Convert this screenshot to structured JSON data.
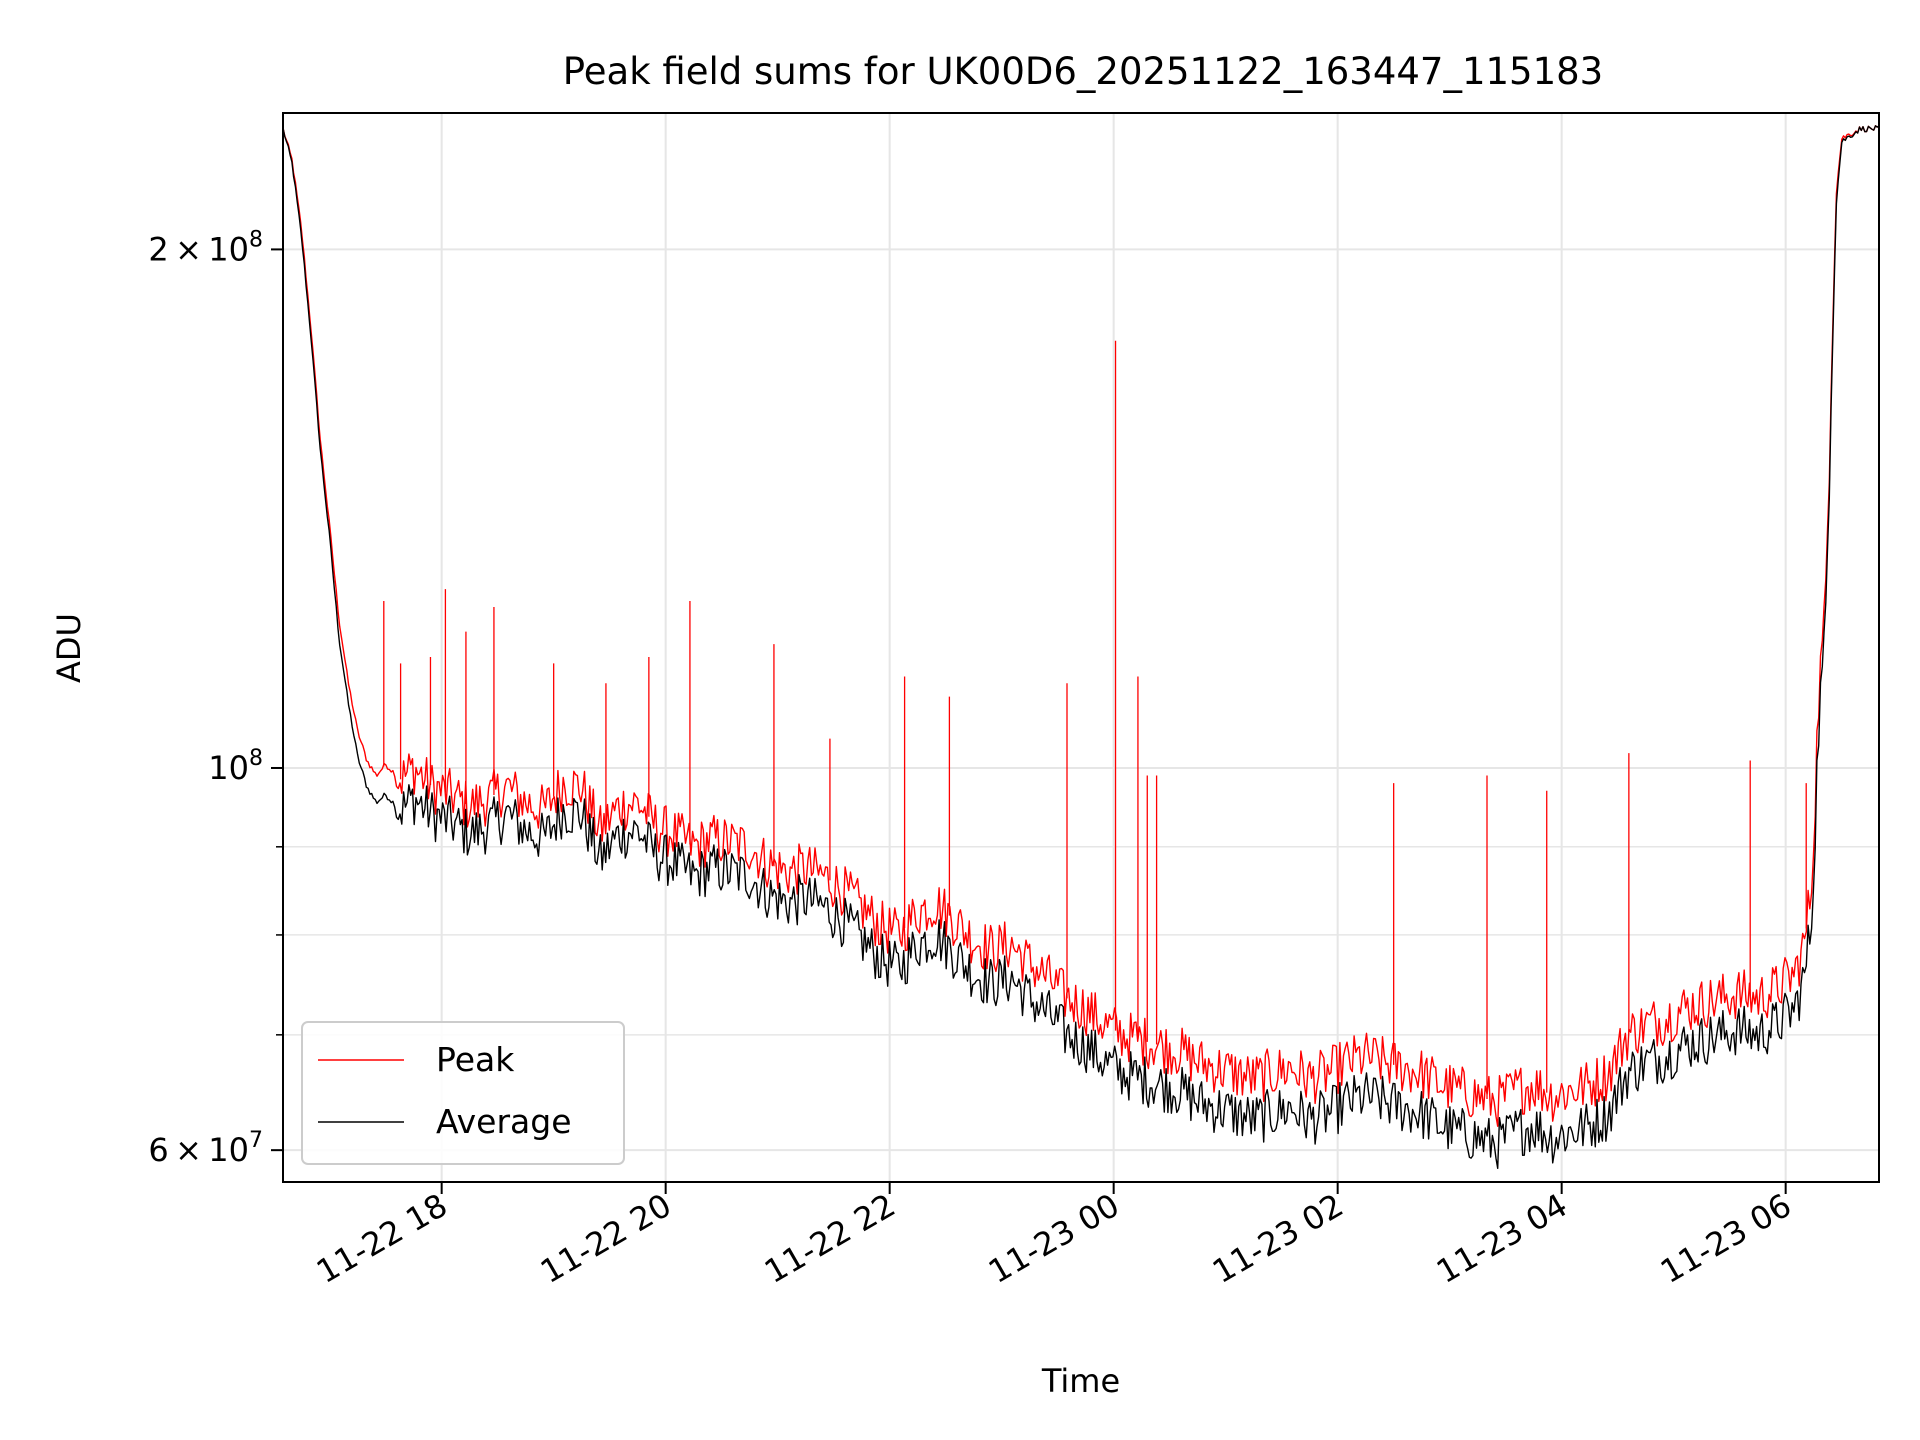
{
  "chart_data": {
    "type": "line",
    "title": "Peak field sums for UK00D6_20251122_163447_115183",
    "xlabel": "Time",
    "ylabel": "ADU",
    "yscale": "log",
    "xlim": [
      "2025-11-22 16:35",
      "2025-11-23 06:50"
    ],
    "ylim": [
      57500000,
      240000000
    ],
    "grid": true,
    "legend_position": "lower-left",
    "x_ticks": [
      {
        "t": "2025-11-22 18:00",
        "label": "11-22 18"
      },
      {
        "t": "2025-11-22 20:00",
        "label": "11-22 20"
      },
      {
        "t": "2025-11-22 22:00",
        "label": "11-22 22"
      },
      {
        "t": "2025-11-23 00:00",
        "label": "11-23 00"
      },
      {
        "t": "2025-11-23 02:00",
        "label": "11-23 02"
      },
      {
        "t": "2025-11-23 04:00",
        "label": "11-23 04"
      },
      {
        "t": "2025-11-23 06:00",
        "label": "11-23 06"
      }
    ],
    "y_major_ticks": [
      {
        "value": 60000000,
        "mantissa": "6",
        "exponent": "7"
      },
      {
        "value": 100000000,
        "mantissa": "",
        "exponent": "8"
      },
      {
        "value": 200000000,
        "mantissa": "2",
        "exponent": "8"
      }
    ],
    "y_minor_ticks": [
      70000000,
      80000000,
      90000000
    ],
    "series": [
      {
        "name": "Peak",
        "color": "#ff0000",
        "points": [
          [
            "2025-11-22 16:35",
            235000000
          ],
          [
            "2025-11-22 16:40",
            225000000
          ],
          [
            "2025-11-22 16:45",
            205000000
          ],
          [
            "2025-11-22 16:50",
            180000000
          ],
          [
            "2025-11-22 16:55",
            155000000
          ],
          [
            "2025-11-22 17:00",
            138000000
          ],
          [
            "2025-11-22 17:05",
            122000000
          ],
          [
            "2025-11-22 17:10",
            112000000
          ],
          [
            "2025-11-22 17:15",
            105000000
          ],
          [
            "2025-11-22 17:20",
            101000000
          ],
          [
            "2025-11-22 17:25",
            99000000
          ],
          [
            "2025-11-22 17:30",
            100500000
          ],
          [
            "2025-11-22 17:38",
            98500000
          ],
          [
            "2025-11-22 17:45",
            100000000
          ],
          [
            "2025-11-22 17:55",
            97500000
          ],
          [
            "2025-11-22 18:05",
            96500000
          ],
          [
            "2025-11-22 18:15",
            95000000
          ],
          [
            "2025-11-22 18:25",
            96000000
          ],
          [
            "2025-11-22 18:35",
            97500000
          ],
          [
            "2025-11-22 18:45",
            95500000
          ],
          [
            "2025-11-22 18:55",
            94500000
          ],
          [
            "2025-11-22 19:05",
            98000000
          ],
          [
            "2025-11-22 19:15",
            97500000
          ],
          [
            "2025-11-22 19:25",
            92000000
          ],
          [
            "2025-11-22 19:35",
            95000000
          ],
          [
            "2025-11-22 19:45",
            95500000
          ],
          [
            "2025-11-22 19:55",
            92500000
          ],
          [
            "2025-11-22 20:05",
            91500000
          ],
          [
            "2025-11-22 20:15",
            90000000
          ],
          [
            "2025-11-22 20:25",
            91000000
          ],
          [
            "2025-11-22 20:35",
            90500000
          ],
          [
            "2025-11-22 20:45",
            90000000
          ],
          [
            "2025-11-22 20:55",
            88000000
          ],
          [
            "2025-11-22 21:05",
            87000000
          ],
          [
            "2025-11-22 21:15",
            87500000
          ],
          [
            "2025-11-22 21:25",
            86500000
          ],
          [
            "2025-11-22 21:35",
            85000000
          ],
          [
            "2025-11-22 21:45",
            83000000
          ],
          [
            "2025-11-22 21:55",
            81000000
          ],
          [
            "2025-11-22 22:05",
            80000000
          ],
          [
            "2025-11-22 22:15",
            82500000
          ],
          [
            "2025-11-22 22:25",
            83500000
          ],
          [
            "2025-11-22 22:35",
            81500000
          ],
          [
            "2025-11-22 22:45",
            79500000
          ],
          [
            "2025-11-22 22:55",
            78500000
          ],
          [
            "2025-11-22 23:05",
            79000000
          ],
          [
            "2025-11-22 23:15",
            77000000
          ],
          [
            "2025-11-22 23:25",
            75500000
          ],
          [
            "2025-11-22 23:35",
            73500000
          ],
          [
            "2025-11-22 23:45",
            72500000
          ],
          [
            "2025-11-22 23:55",
            71000000
          ],
          [
            "2025-11-23 00:05",
            70000000
          ],
          [
            "2025-11-23 00:15",
            69500000
          ],
          [
            "2025-11-23 00:25",
            69000000
          ],
          [
            "2025-11-23 00:35",
            68500000
          ],
          [
            "2025-11-23 00:45",
            67500000
          ],
          [
            "2025-11-23 00:55",
            67000000
          ],
          [
            "2025-11-23 01:05",
            66500000
          ],
          [
            "2025-11-23 01:15",
            66000000
          ],
          [
            "2025-11-23 01:25",
            66500000
          ],
          [
            "2025-11-23 01:35",
            67000000
          ],
          [
            "2025-11-23 01:45",
            66000000
          ],
          [
            "2025-11-23 01:55",
            66500000
          ],
          [
            "2025-11-23 02:05",
            67500000
          ],
          [
            "2025-11-23 02:15",
            68000000
          ],
          [
            "2025-11-23 02:25",
            67500000
          ],
          [
            "2025-11-23 02:35",
            67000000
          ],
          [
            "2025-11-23 02:45",
            66500000
          ],
          [
            "2025-11-23 02:55",
            65500000
          ],
          [
            "2025-11-23 03:05",
            65000000
          ],
          [
            "2025-11-23 03:15",
            64500000
          ],
          [
            "2025-11-23 03:25",
            64000000
          ],
          [
            "2025-11-23 03:35",
            65000000
          ],
          [
            "2025-11-23 03:45",
            65500000
          ],
          [
            "2025-11-23 03:55",
            64500000
          ],
          [
            "2025-11-23 04:05",
            65000000
          ],
          [
            "2025-11-23 04:15",
            65500000
          ],
          [
            "2025-11-23 04:25",
            66500000
          ],
          [
            "2025-11-23 04:35",
            70000000
          ],
          [
            "2025-11-23 04:45",
            71000000
          ],
          [
            "2025-11-23 04:55",
            71500000
          ],
          [
            "2025-11-23 05:05",
            72500000
          ],
          [
            "2025-11-23 05:15",
            73000000
          ],
          [
            "2025-11-23 05:25",
            73500000
          ],
          [
            "2025-11-23 05:35",
            74000000
          ],
          [
            "2025-11-23 05:45",
            73500000
          ],
          [
            "2025-11-23 05:55",
            74500000
          ],
          [
            "2025-11-23 06:05",
            76000000
          ],
          [
            "2025-11-23 06:10",
            79000000
          ],
          [
            "2025-11-23 06:14",
            86000000
          ],
          [
            "2025-11-23 06:18",
            112000000
          ],
          [
            "2025-11-23 06:21",
            122000000
          ],
          [
            "2025-11-23 06:24",
            160000000
          ],
          [
            "2025-11-23 06:27",
            215000000
          ],
          [
            "2025-11-23 06:30",
            232000000
          ],
          [
            "2025-11-23 06:40",
            235000000
          ],
          [
            "2025-11-23 06:50",
            235000000
          ]
        ]
      },
      {
        "name": "Average",
        "color": "#000000",
        "points": [
          [
            "2025-11-22 16:35",
            235000000
          ],
          [
            "2025-11-22 16:40",
            224000000
          ],
          [
            "2025-11-22 16:45",
            203000000
          ],
          [
            "2025-11-22 16:50",
            178000000
          ],
          [
            "2025-11-22 16:55",
            153000000
          ],
          [
            "2025-11-22 17:00",
            136000000
          ],
          [
            "2025-11-22 17:05",
            119000000
          ],
          [
            "2025-11-22 17:10",
            109000000
          ],
          [
            "2025-11-22 17:15",
            101500000
          ],
          [
            "2025-11-22 17:20",
            97500000
          ],
          [
            "2025-11-22 17:25",
            95500000
          ],
          [
            "2025-11-22 17:30",
            96500000
          ],
          [
            "2025-11-22 17:38",
            94500000
          ],
          [
            "2025-11-22 17:45",
            96000000
          ],
          [
            "2025-11-22 17:55",
            94000000
          ],
          [
            "2025-11-22 18:05",
            93000000
          ],
          [
            "2025-11-22 18:15",
            91500000
          ],
          [
            "2025-11-22 18:25",
            92500000
          ],
          [
            "2025-11-22 18:35",
            94000000
          ],
          [
            "2025-11-22 18:45",
            92000000
          ],
          [
            "2025-11-22 18:55",
            91000000
          ],
          [
            "2025-11-22 19:05",
            94500000
          ],
          [
            "2025-11-22 19:15",
            94000000
          ],
          [
            "2025-11-22 19:25",
            88500000
          ],
          [
            "2025-11-22 19:35",
            91500000
          ],
          [
            "2025-11-22 19:45",
            92000000
          ],
          [
            "2025-11-22 19:55",
            89000000
          ],
          [
            "2025-11-22 20:05",
            88000000
          ],
          [
            "2025-11-22 20:15",
            86500000
          ],
          [
            "2025-11-22 20:25",
            87500000
          ],
          [
            "2025-11-22 20:35",
            87000000
          ],
          [
            "2025-11-22 20:45",
            86500000
          ],
          [
            "2025-11-22 20:55",
            84500000
          ],
          [
            "2025-11-22 21:05",
            83500000
          ],
          [
            "2025-11-22 21:15",
            84000000
          ],
          [
            "2025-11-22 21:25",
            83000000
          ],
          [
            "2025-11-22 21:35",
            81500000
          ],
          [
            "2025-11-22 21:45",
            79500000
          ],
          [
            "2025-11-22 21:55",
            77500000
          ],
          [
            "2025-11-22 22:05",
            76500000
          ],
          [
            "2025-11-22 22:15",
            79000000
          ],
          [
            "2025-11-22 22:25",
            80000000
          ],
          [
            "2025-11-22 22:35",
            78000000
          ],
          [
            "2025-11-22 22:45",
            76000000
          ],
          [
            "2025-11-22 22:55",
            75000000
          ],
          [
            "2025-11-22 23:05",
            75500000
          ],
          [
            "2025-11-22 23:15",
            73500000
          ],
          [
            "2025-11-22 23:25",
            72000000
          ],
          [
            "2025-11-22 23:35",
            70000000
          ],
          [
            "2025-11-22 23:45",
            69000000
          ],
          [
            "2025-11-22 23:55",
            67500000
          ],
          [
            "2025-11-23 00:05",
            66500000
          ],
          [
            "2025-11-23 00:15",
            66000000
          ],
          [
            "2025-11-23 00:25",
            65500000
          ],
          [
            "2025-11-23 00:35",
            65000000
          ],
          [
            "2025-11-23 00:45",
            64000000
          ],
          [
            "2025-11-23 00:55",
            63500000
          ],
          [
            "2025-11-23 01:05",
            63000000
          ],
          [
            "2025-11-23 01:15",
            62500000
          ],
          [
            "2025-11-23 01:25",
            63000000
          ],
          [
            "2025-11-23 01:35",
            63500000
          ],
          [
            "2025-11-23 01:45",
            62500000
          ],
          [
            "2025-11-23 01:55",
            63000000
          ],
          [
            "2025-11-23 02:05",
            64000000
          ],
          [
            "2025-11-23 02:15",
            64500000
          ],
          [
            "2025-11-23 02:25",
            64000000
          ],
          [
            "2025-11-23 02:35",
            63500000
          ],
          [
            "2025-11-23 02:45",
            63000000
          ],
          [
            "2025-11-23 02:55",
            62000000
          ],
          [
            "2025-11-23 03:05",
            61500000
          ],
          [
            "2025-11-23 03:15",
            61000000
          ],
          [
            "2025-11-23 03:25",
            60500000
          ],
          [
            "2025-11-23 03:35",
            61500000
          ],
          [
            "2025-11-23 03:45",
            62000000
          ],
          [
            "2025-11-23 03:55",
            61000000
          ],
          [
            "2025-11-23 04:05",
            61500000
          ],
          [
            "2025-11-23 04:15",
            62000000
          ],
          [
            "2025-11-23 04:25",
            63000000
          ],
          [
            "2025-11-23 04:35",
            66500000
          ],
          [
            "2025-11-23 04:45",
            67500000
          ],
          [
            "2025-11-23 04:55",
            68000000
          ],
          [
            "2025-11-23 05:05",
            69000000
          ],
          [
            "2025-11-23 05:15",
            69500000
          ],
          [
            "2025-11-23 05:25",
            70000000
          ],
          [
            "2025-11-23 05:35",
            70500000
          ],
          [
            "2025-11-23 05:45",
            70000000
          ],
          [
            "2025-11-23 05:55",
            71000000
          ],
          [
            "2025-11-23 06:05",
            72500000
          ],
          [
            "2025-11-23 06:10",
            75500000
          ],
          [
            "2025-11-23 06:14",
            82000000
          ],
          [
            "2025-11-23 06:18",
            108000000
          ],
          [
            "2025-11-23 06:21",
            118000000
          ],
          [
            "2025-11-23 06:24",
            157000000
          ],
          [
            "2025-11-23 06:27",
            212000000
          ],
          [
            "2025-11-23 06:30",
            231000000
          ],
          [
            "2025-11-23 06:40",
            235000000
          ],
          [
            "2025-11-23 06:50",
            235000000
          ]
        ]
      }
    ],
    "peak_spikes": [
      [
        "2025-11-22 17:29",
        125000000
      ],
      [
        "2025-11-22 17:38",
        115000000
      ],
      [
        "2025-11-22 17:54",
        116000000
      ],
      [
        "2025-11-22 18:02",
        127000000
      ],
      [
        "2025-11-22 18:13",
        120000000
      ],
      [
        "2025-11-22 18:28",
        124000000
      ],
      [
        "2025-11-22 19:00",
        115000000
      ],
      [
        "2025-11-22 19:28",
        112000000
      ],
      [
        "2025-11-22 19:51",
        116000000
      ],
      [
        "2025-11-22 20:13",
        125000000
      ],
      [
        "2025-11-22 20:58",
        118000000
      ],
      [
        "2025-11-22 21:28",
        104000000
      ],
      [
        "2025-11-22 22:08",
        113000000
      ],
      [
        "2025-11-22 22:32",
        110000000
      ],
      [
        "2025-11-22 23:35",
        112000000
      ],
      [
        "2025-11-23 00:01",
        177000000
      ],
      [
        "2025-11-23 00:13",
        113000000
      ],
      [
        "2025-11-23 00:18",
        99000000
      ],
      [
        "2025-11-23 00:23",
        99000000
      ],
      [
        "2025-11-23 02:30",
        98000000
      ],
      [
        "2025-11-23 03:20",
        99000000
      ],
      [
        "2025-11-23 03:52",
        97000000
      ],
      [
        "2025-11-23 04:36",
        102000000
      ],
      [
        "2025-11-23 05:41",
        101000000
      ],
      [
        "2025-11-23 06:11",
        98000000
      ]
    ]
  }
}
